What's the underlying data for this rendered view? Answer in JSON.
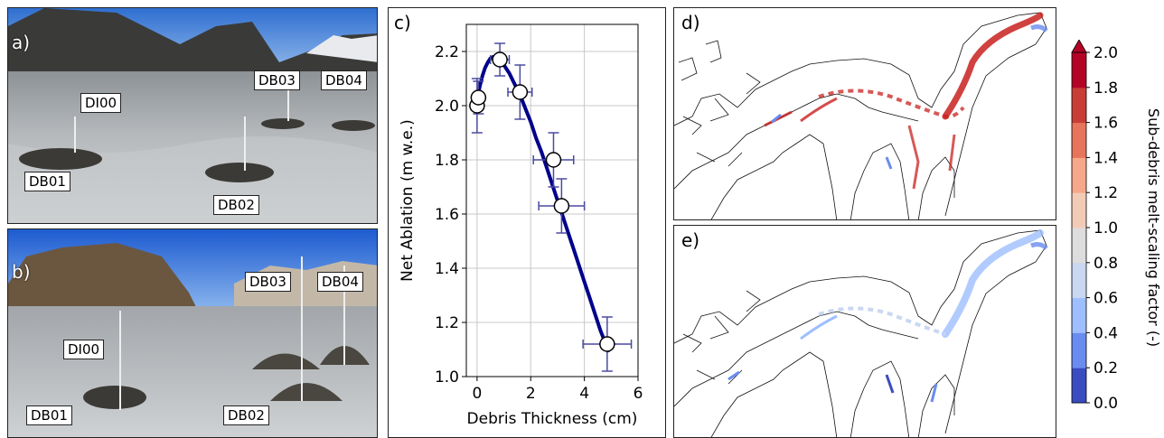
{
  "photos": {
    "a": {
      "letter": "a)",
      "labels": {
        "dio": "DI00",
        "db01": "DB01",
        "db02": "DB02",
        "db03": "DB03",
        "db04": "DB04"
      }
    },
    "b": {
      "letter": "b)",
      "labels": {
        "dio": "DI00",
        "db01": "DB01",
        "db02": "DB02",
        "db03": "DB03",
        "db04": "DB04"
      }
    }
  },
  "chart_data": [
    {
      "panel": "c)",
      "type": "scatter",
      "xlabel": "Debris Thickness (cm)",
      "ylabel": "Net Ablation (m w.e.)",
      "xlim": [
        -0.4,
        6
      ],
      "ylim": [
        1.0,
        2.3
      ],
      "xticks": [
        0,
        2,
        4,
        6
      ],
      "yticks": [
        1.0,
        1.2,
        1.4,
        1.6,
        1.8,
        2.0,
        2.2
      ],
      "grid": true,
      "points": [
        {
          "x": 0.0,
          "y": 2.0,
          "xerr": 0.0,
          "yerr": 0.1
        },
        {
          "x": 0.05,
          "y": 2.03,
          "xerr": 0.0,
          "yerr": 0.06
        },
        {
          "x": 0.85,
          "y": 2.17,
          "xerr": 0.35,
          "yerr": 0.06
        },
        {
          "x": 1.6,
          "y": 2.05,
          "xerr": 0.45,
          "yerr": 0.1
        },
        {
          "x": 2.85,
          "y": 1.8,
          "xerr": 0.75,
          "yerr": 0.1
        },
        {
          "x": 3.15,
          "y": 1.63,
          "xerr": 0.85,
          "yerr": 0.1
        },
        {
          "x": 4.85,
          "y": 1.12,
          "xerr": 0.9,
          "yerr": 0.1
        }
      ],
      "fit_curve": {
        "x": [
          0.0,
          0.1,
          0.2,
          0.3,
          0.4,
          0.5,
          0.6,
          0.7,
          0.8,
          0.9,
          1.0,
          1.2,
          1.4,
          1.6,
          1.8,
          2.0,
          2.2,
          2.4,
          2.6,
          2.8,
          3.0,
          3.2,
          3.4,
          3.6,
          3.8,
          4.0,
          4.2,
          4.4,
          4.6,
          4.8,
          4.9
        ],
        "y": [
          2.02,
          2.07,
          2.11,
          2.14,
          2.16,
          2.175,
          2.18,
          2.18,
          2.175,
          2.165,
          2.15,
          2.12,
          2.08,
          2.04,
          1.99,
          1.94,
          1.88,
          1.83,
          1.77,
          1.71,
          1.65,
          1.59,
          1.53,
          1.47,
          1.41,
          1.35,
          1.29,
          1.23,
          1.17,
          1.12,
          1.09
        ],
        "color": "#00008b"
      },
      "marker_color": "#ffffff",
      "errorbar_color": "#4a4aa0"
    },
    {
      "panels": [
        "d)",
        "e)"
      ],
      "type": "heatmap",
      "colorbar": {
        "label": "Sub-debris melt-scaling factor (-)",
        "min": 0.0,
        "max": 2.0,
        "ticks": [
          "2.0",
          "1.8",
          "1.6",
          "1.4",
          "1.2",
          "1.0",
          "0.8",
          "0.6",
          "0.4",
          "0.2",
          "0.0"
        ],
        "extend": "max",
        "colormap": "coolwarm",
        "colors": [
          "#3b4cc0",
          "#6a8bef",
          "#9ebeff",
          "#c9d7f0",
          "#dddddd",
          "#f2cbb7",
          "#f7a889",
          "#e7755b",
          "#c83e36",
          "#b40426"
        ]
      }
    }
  ]
}
